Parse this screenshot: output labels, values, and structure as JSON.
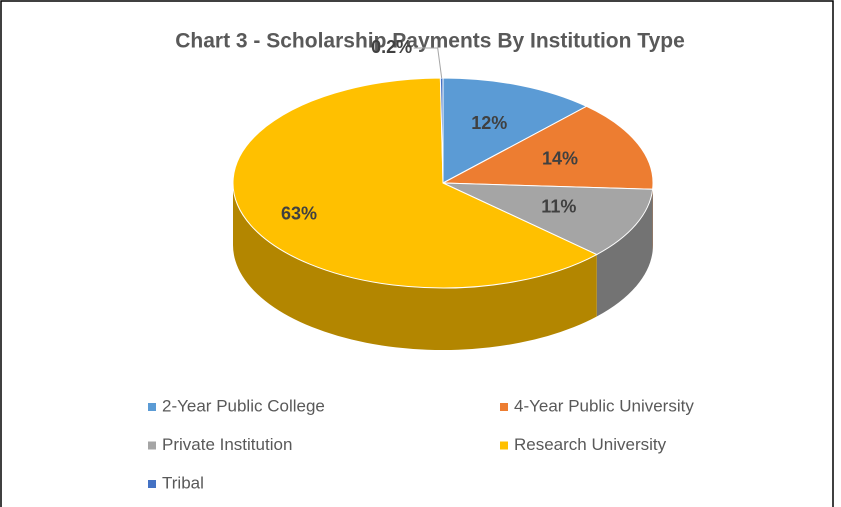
{
  "chart_data": {
    "type": "pie",
    "title": "Chart 3 - Scholarship Payments By Institution Type",
    "categories": [
      "2-Year Public College",
      "4-Year Public University",
      "Private Institution",
      "Research University",
      "Tribal"
    ],
    "values": [
      12,
      14,
      11,
      63,
      0.2
    ],
    "value_labels": [
      "12%",
      "14%",
      "11%",
      "63%",
      "0.2%"
    ],
    "colors": [
      "#5b9bd5",
      "#ed7d31",
      "#a5a5a5",
      "#ffc000",
      "#4472c4"
    ],
    "legend": "bottom"
  }
}
